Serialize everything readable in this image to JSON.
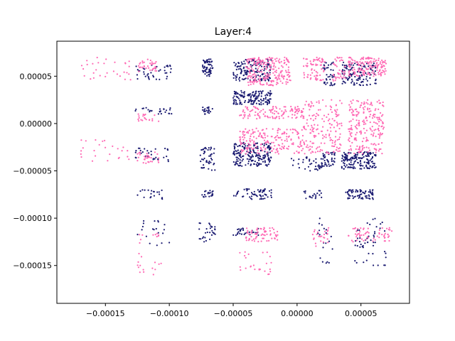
{
  "chart_data": {
    "type": "scatter",
    "title": "Layer:4",
    "xlabel": "",
    "ylabel": "",
    "xlim": [
      -0.000188,
      8.8e-05
    ],
    "ylim": [
      -0.00019,
      8.7e-05
    ],
    "x_ticks": [
      {
        "value": -0.00015,
        "label": "−0.00015"
      },
      {
        "value": -0.0001,
        "label": "−0.00010"
      },
      {
        "value": -5e-05,
        "label": "−0.00005"
      },
      {
        "value": 0.0,
        "label": "0.00000"
      },
      {
        "value": 5e-05,
        "label": "0.00005"
      }
    ],
    "y_ticks": [
      {
        "value": 5e-05,
        "label": "0.00005"
      },
      {
        "value": 0.0,
        "label": "0.00000"
      },
      {
        "value": -5e-05,
        "label": "−0.00005"
      },
      {
        "value": -0.0001,
        "label": "−0.00010"
      },
      {
        "value": -0.00015,
        "label": "−0.00015"
      }
    ],
    "grid": false,
    "colors": {
      "series_a": "#191970",
      "series_b": "#ff69b4"
    },
    "series": [
      {
        "color": "#191970",
        "clusters": [
          {
            "x": [
              -7.4e-05,
              -6.6e-05
            ],
            "y": [
              5e-05,
              6.8e-05
            ],
            "n": 60
          },
          {
            "x": [
              -7.5e-05,
              -6.6e-05
            ],
            "y": [
              1e-05,
              1.8e-05
            ],
            "n": 20
          },
          {
            "x": [
              -7.6e-05,
              -6.4e-05
            ],
            "y": [
              -5e-05,
              -2.5e-05
            ],
            "n": 45
          },
          {
            "x": [
              -7.5e-05,
              -6.4e-05
            ],
            "y": [
              -7.8e-05,
              -7e-05
            ],
            "n": 20
          },
          {
            "x": [
              -7.7e-05,
              -6.4e-05
            ],
            "y": [
              -0.000125,
              -0.000105
            ],
            "n": 30
          },
          {
            "x": [
              -5e-05,
              -2e-05
            ],
            "y": [
              4.5e-05,
              6.8e-05
            ],
            "n": 160
          },
          {
            "x": [
              -5e-05,
              -2e-05
            ],
            "y": [
              2e-05,
              3.5e-05
            ],
            "n": 140
          },
          {
            "x": [
              -5e-05,
              -2e-05
            ],
            "y": [
              -4.5e-05,
              -2e-05
            ],
            "n": 200
          },
          {
            "x": [
              -5e-05,
              -2e-05
            ],
            "y": [
              -8e-05,
              -6.8e-05
            ],
            "n": 60
          },
          {
            "x": [
              -5e-05,
              -3e-05
            ],
            "y": [
              -0.000118,
              -0.00011
            ],
            "n": 30
          },
          {
            "x": [
              2e-05,
              3e-05
            ],
            "y": [
              4e-05,
              6.5e-05
            ],
            "n": 40
          },
          {
            "x": [
              2e-05,
              3e-05
            ],
            "y": [
              -4.5e-05,
              -3e-05
            ],
            "n": 40
          },
          {
            "x": [
              3.5e-05,
              6.2e-05
            ],
            "y": [
              4e-05,
              6.5e-05
            ],
            "n": 130
          },
          {
            "x": [
              3.5e-05,
              6.2e-05
            ],
            "y": [
              -4.8e-05,
              -3e-05
            ],
            "n": 160
          },
          {
            "x": [
              3.8e-05,
              6e-05
            ],
            "y": [
              -8e-05,
              -7e-05
            ],
            "n": 70
          },
          {
            "x": [
              -5e-06,
              2e-05
            ],
            "y": [
              -5e-05,
              -3.5e-05
            ],
            "n": 40
          },
          {
            "x": [
              5e-06,
              2e-05
            ],
            "y": [
              -8e-05,
              -7e-05
            ],
            "n": 20
          },
          {
            "x": [
              -0.000127,
              -9.8e-05
            ],
            "y": [
              4.5e-05,
              6.2e-05
            ],
            "n": 40
          },
          {
            "x": [
              -0.000127,
              -9.8e-05
            ],
            "y": [
              1e-05,
              1.7e-05
            ],
            "n": 25
          },
          {
            "x": [
              -0.000127,
              -0.0001
            ],
            "y": [
              -4e-05,
              -2.5e-05
            ],
            "n": 30
          },
          {
            "x": [
              -0.000125,
              -0.000105
            ],
            "y": [
              -8e-05,
              -7e-05
            ],
            "n": 20
          },
          {
            "x": [
              -0.000127,
              -0.0001
            ],
            "y": [
              -0.00013,
              -0.000102
            ],
            "n": 20
          },
          {
            "x": [
              4.5e-05,
              7e-05
            ],
            "y": [
              -0.00015,
              -0.0001
            ],
            "n": 50
          },
          {
            "x": [
              1.5e-05,
              3e-05
            ],
            "y": [
              -0.00015,
              -0.0001
            ],
            "n": 20
          }
        ]
      },
      {
        "color": "#ff69b4",
        "clusters": [
          {
            "x": [
              -4e-05,
              -5e-06
            ],
            "y": [
              4e-05,
              7e-05
            ],
            "n": 230
          },
          {
            "x": [
              -4.5e-05,
              5e-06
            ],
            "y": [
              5e-06,
              1.8e-05
            ],
            "n": 120
          },
          {
            "x": [
              -4.5e-05,
              5e-06
            ],
            "y": [
              -3.2e-05,
              -5e-06
            ],
            "n": 200
          },
          {
            "x": [
              5e-06,
              3.5e-05
            ],
            "y": [
              -3.2e-05,
              2.5e-05
            ],
            "n": 170
          },
          {
            "x": [
              4e-05,
              6.8e-05
            ],
            "y": [
              -3.2e-05,
              2.5e-05
            ],
            "n": 220
          },
          {
            "x": [
              4e-05,
              7e-05
            ],
            "y": [
              5e-05,
              7e-05
            ],
            "n": 160
          },
          {
            "x": [
              5e-06,
              2.2e-05
            ],
            "y": [
              4.5e-05,
              7e-05
            ],
            "n": 70
          },
          {
            "x": [
              2.8e-05,
              3.8e-05
            ],
            "y": [
              4.5e-05,
              7e-05
            ],
            "n": 40
          },
          {
            "x": [
              -0.000125,
              -0.00011
            ],
            "y": [
              5.5e-05,
              6.8e-05
            ],
            "n": 35
          },
          {
            "x": [
              -0.000125,
              -0.000108
            ],
            "y": [
              -4.2e-05,
              -3e-05
            ],
            "n": 30
          },
          {
            "x": [
              -0.000125,
              -0.000108
            ],
            "y": [
              2e-06,
              1e-05
            ],
            "n": 20
          },
          {
            "x": [
              -4e-05,
              -1.5e-05
            ],
            "y": [
              -0.000125,
              -0.00011
            ],
            "n": 70
          },
          {
            "x": [
              4e-05,
              7.5e-05
            ],
            "y": [
              -0.000125,
              -0.00011
            ],
            "n": 60
          },
          {
            "x": [
              1e-05,
              2.5e-05
            ],
            "y": [
              -0.00013,
              -0.00011
            ],
            "n": 25
          },
          {
            "x": [
              -0.00017,
              -0.00013
            ],
            "y": [
              4.5e-05,
              7e-05
            ],
            "n": 30
          },
          {
            "x": [
              -0.00017,
              -0.00013
            ],
            "y": [
              -4e-05,
              -1.5e-05
            ],
            "n": 25
          },
          {
            "x": [
              -0.000125,
              -0.000105
            ],
            "y": [
              -0.00016,
              -0.000115
            ],
            "n": 25
          },
          {
            "x": [
              -4.5e-05,
              -2e-05
            ],
            "y": [
              -0.00016,
              -0.000135
            ],
            "n": 25
          }
        ]
      }
    ]
  }
}
